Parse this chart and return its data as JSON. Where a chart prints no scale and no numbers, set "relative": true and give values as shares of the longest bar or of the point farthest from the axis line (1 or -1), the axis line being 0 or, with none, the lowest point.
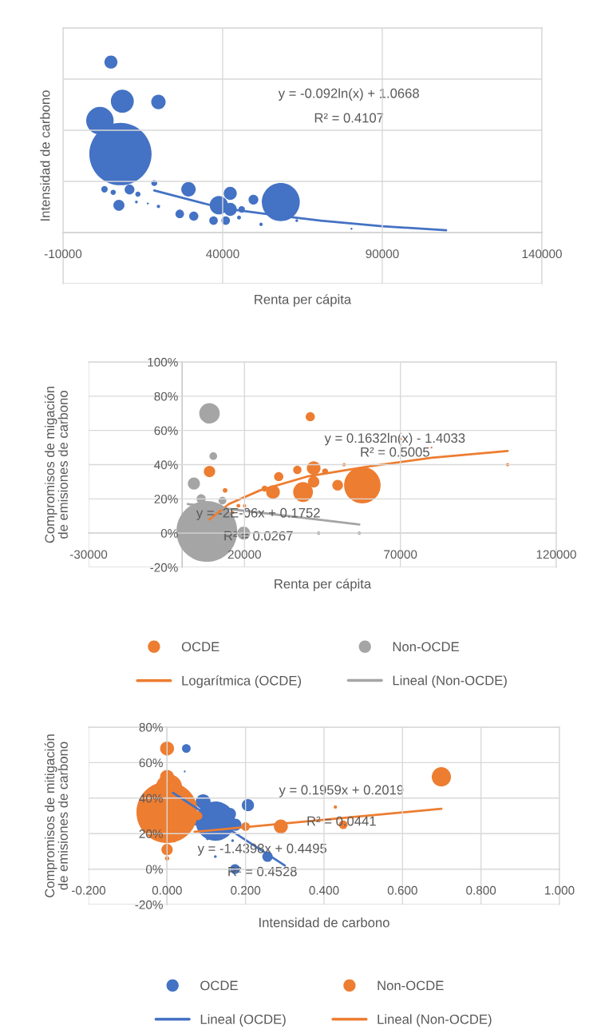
{
  "chart_data": [
    {
      "type": "bubble",
      "xlabel": "Renta per cápita",
      "ylabel": "Intensidad de carbono",
      "relative": true,
      "tick_labels": "x",
      "grid": true,
      "legend": false,
      "xlim": [
        -10000,
        140000
      ],
      "xticks": [
        -10000,
        40000,
        90000,
        140000
      ],
      "series": [
        {
          "color": "#4472c4",
          "x": [
            5000,
            8570,
            19880,
            1550,
            7980,
            18570,
            2980,
            5710,
            10830,
            13450,
            7500,
            29290,
            38810,
            42380,
            42380,
            26550,
            30950,
            37140,
            40950,
            45950,
            45120,
            49640,
            58210,
            52020,
            63210,
            70710,
            80360,
            19880,
            12980,
            16550
          ],
          "values": [
            1.0,
            0.77,
            0.766,
            0.656,
            0.46,
            0.29,
            0.254,
            0.236,
            0.252,
            0.225,
            0.16,
            0.254,
            0.16,
            0.23,
            0.136,
            0.109,
            0.096,
            0.07,
            0.07,
            0.136,
            0.088,
            0.193,
            0.179,
            0.048,
            0.07,
            0.07,
            0.022,
            0.153,
            0.179,
            0.17
          ],
          "sizes": [
            0.044,
            0.136,
            0.054,
            0.195,
            1.0,
            0.009,
            0.011,
            0.007,
            0.025,
            0.007,
            0.032,
            0.054,
            0.087,
            0.044,
            0.044,
            0.019,
            0.022,
            0.019,
            0.019,
            0.011,
            0.004,
            0.025,
            0.373,
            0.003,
            0.002,
            0.001,
            0.001,
            0.003,
            0.002,
            0.001
          ]
        },
        {
          "type": "line",
          "color": "#4472c4",
          "x": [
            18570,
            40000,
            58200,
            70700,
            90000,
            110000
          ],
          "values": [
            0.247,
            0.142,
            0.098,
            0.07,
            0.037,
            0.013
          ]
        }
      ],
      "annotations": [
        "y = -0.092ln(x) + 1.0668",
        "R² = 0.4107"
      ]
    },
    {
      "type": "bubble",
      "xlabel": "Renta per cápita",
      "ylabel": "Compromisos de migación de emisiones de carbono",
      "grid": true,
      "legend": "bottom",
      "xlim": [
        -30000,
        120000
      ],
      "xticks": [
        -30000,
        20000,
        70000,
        120000
      ],
      "ylim": [
        -20,
        100
      ],
      "yticks": [
        {
          "value": -20,
          "label": "-20%"
        },
        {
          "value": 0,
          "label": "0%"
        },
        {
          "value": 20,
          "label": "20%"
        },
        {
          "value": 40,
          "label": "40%"
        },
        {
          "value": 60,
          "label": "60%"
        },
        {
          "value": 80,
          "label": "80%"
        },
        {
          "value": 100,
          "label": "100%"
        }
      ],
      "series": [
        {
          "name": "OCDE",
          "color": "#ed7d31",
          "x": [
            41100,
            8780,
            13780,
            26460,
            29150,
            30980,
            36950,
            38780,
            42190,
            42190,
            45850,
            49880,
            51950,
            57800,
            70240,
            79990,
            18050,
            20000,
            104390,
            16220
          ],
          "values": [
            68,
            36,
            25,
            26,
            24,
            33,
            37,
            24,
            38,
            30,
            36,
            28,
            40,
            28,
            55,
            50,
            16,
            16,
            40,
            12
          ],
          "sizes": [
            0.023,
            0.035,
            0.006,
            0.01,
            0.051,
            0.023,
            0.019,
            0.106,
            0.051,
            0.035,
            0.01,
            0.031,
            0.003,
            0.36,
            0.001,
            0.001,
            0.004,
            0.003,
            0.003,
            0.003
          ]
        },
        {
          "name": "Non-OCDE",
          "color": "#a5a5a5",
          "x": [
            8780,
            10000,
            3780,
            6100,
            12930,
            7930,
            19760,
            43780,
            56830
          ],
          "values": [
            70,
            45,
            29,
            20,
            19,
            1,
            0,
            0,
            0
          ],
          "sizes": [
            0.114,
            0.016,
            0.04,
            0.023,
            0.016,
            1.0,
            0.045,
            0.003,
            0.003
          ]
        },
        {
          "type": "line",
          "name": "Logarítmica (OCDE)",
          "color": "#ed7d31",
          "x": [
            8780,
            15000,
            25000,
            40000,
            60000,
            80000,
            104400
          ],
          "values": [
            8,
            17,
            25,
            33,
            39,
            44,
            48
          ]
        },
        {
          "type": "line",
          "name": "Lineal (Non-OCDE)",
          "color": "#a5a5a5",
          "x": [
            1830,
            56830
          ],
          "values": [
            17,
            5
          ]
        }
      ],
      "annotations": [
        "y = 0.1632ln(x) - 1.4033",
        "R² = 0.5005",
        "y = -2E-06x + 0.1752",
        "R² = 0.0267"
      ]
    },
    {
      "type": "bubble",
      "xlabel": "Intensidad de carbono",
      "ylabel": "Compromisos de mitigación de emisiones de carbono",
      "grid": true,
      "legend": "bottom",
      "xlim": [
        -0.2,
        1.0
      ],
      "xticks": [
        {
          "value": -0.2,
          "label": "-0.200"
        },
        {
          "value": 0,
          "label": "0.000"
        },
        {
          "value": 0.2,
          "label": "0.200"
        },
        {
          "value": 0.4,
          "label": "0.400"
        },
        {
          "value": 0.6,
          "label": "0.600"
        },
        {
          "value": 0.8,
          "label": "0.800"
        },
        {
          "value": 1.0,
          "label": "1.000"
        }
      ],
      "ylim": [
        -20,
        80
      ],
      "yticks": [
        {
          "value": -20,
          "label": "-20%"
        },
        {
          "value": 0,
          "label": "0%"
        },
        {
          "value": 20,
          "label": "20%"
        },
        {
          "value": 40,
          "label": "40%"
        },
        {
          "value": 60,
          "label": "60%"
        },
        {
          "value": 80,
          "label": "80%"
        }
      ],
      "series": [
        {
          "name": "OCDE",
          "color": "#4472c4",
          "x": [
            0.049,
            0.045,
            0.092,
            0.123,
            0.16,
            0.174,
            0.206,
            0.072,
            0.256,
            0.173,
            0.103,
            0.123,
            0.167
          ],
          "values": [
            68,
            55,
            38,
            27,
            31,
            25,
            36,
            27,
            7,
            0,
            17,
            7,
            16
          ],
          "sizes": [
            0.02,
            0.001,
            0.059,
            0.413,
            0.04,
            0.04,
            0.04,
            0.02,
            0.029,
            0.025,
            0.002,
            0.002,
            0.002
          ]
        },
        {
          "name": "Non-OCDE",
          "color": "#ed7d31",
          "x": [
            0,
            0,
            0,
            0.005,
            0,
            0,
            0.019,
            0.699,
            0.29,
            0.2,
            0.449,
            0.429,
            0.079
          ],
          "values": [
            68,
            52,
            32,
            46,
            11,
            6,
            16,
            52,
            24,
            24,
            25,
            35,
            30
          ],
          "sizes": [
            0.052,
            0.052,
            1.0,
            0.184,
            0.034,
            0.005,
            0.003,
            0.099,
            0.052,
            0.02,
            0.02,
            0.003,
            0.02
          ]
        },
        {
          "type": "line",
          "name": "Lineal (OCDE)",
          "color": "#4472c4",
          "x": [
            0.015,
            0.3
          ],
          "values": [
            43,
            2
          ]
        },
        {
          "type": "line",
          "name": "Lineal (Non-OCDE)",
          "color": "#ed7d31",
          "x": [
            0.07,
            0.699
          ],
          "values": [
            21,
            34
          ]
        }
      ],
      "annotations": [
        "y = 0.1959x + 0.2019",
        "R² = 0.0441",
        "y = -1.4398x + 0.4495",
        "R² = 0.4528"
      ]
    }
  ]
}
